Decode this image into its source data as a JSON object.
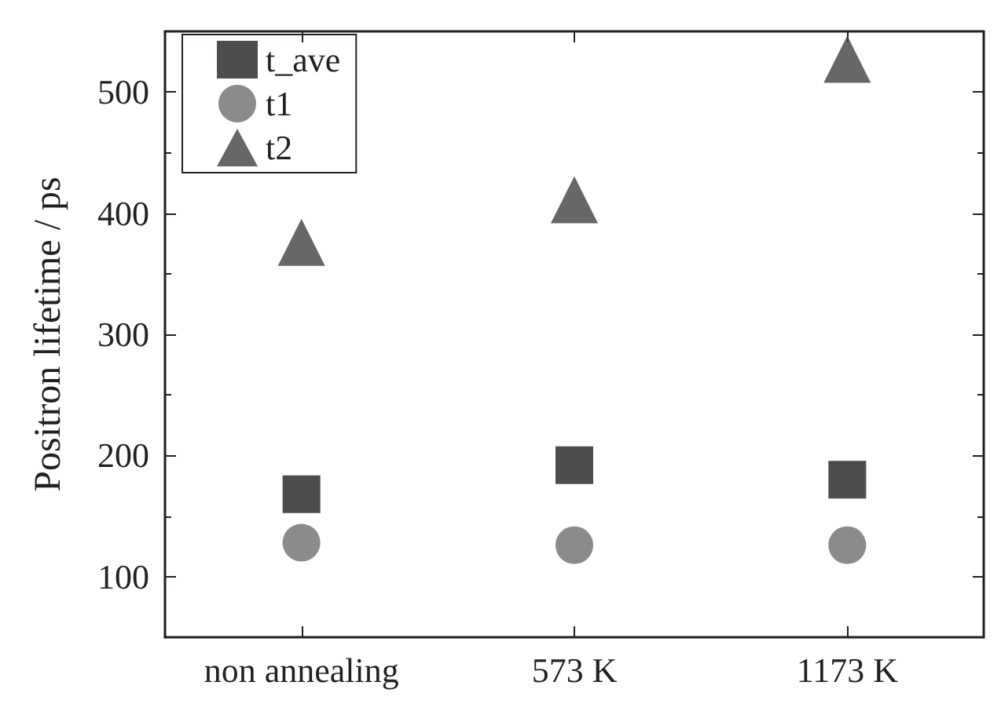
{
  "chart_data": {
    "type": "scatter",
    "ylabel": "Positron lifetime / ps",
    "categories": [
      "non annealing",
      "573 K",
      "1173 K"
    ],
    "series": [
      {
        "name": "t_ave",
        "color": "#231f20",
        "marker": "square",
        "values": [
          168,
          192,
          180
        ]
      },
      {
        "name": "t1",
        "color": "#6d6e71",
        "marker": "circle",
        "values": [
          128,
          126,
          126
        ]
      },
      {
        "name": "t2",
        "color": "#414042",
        "marker": "triangle",
        "values": [
          376,
          411,
          527
        ]
      }
    ],
    "ylim": [
      50,
      550
    ],
    "yticks": [
      100,
      200,
      300,
      400,
      500
    ],
    "grid": false,
    "legend": "top left"
  }
}
